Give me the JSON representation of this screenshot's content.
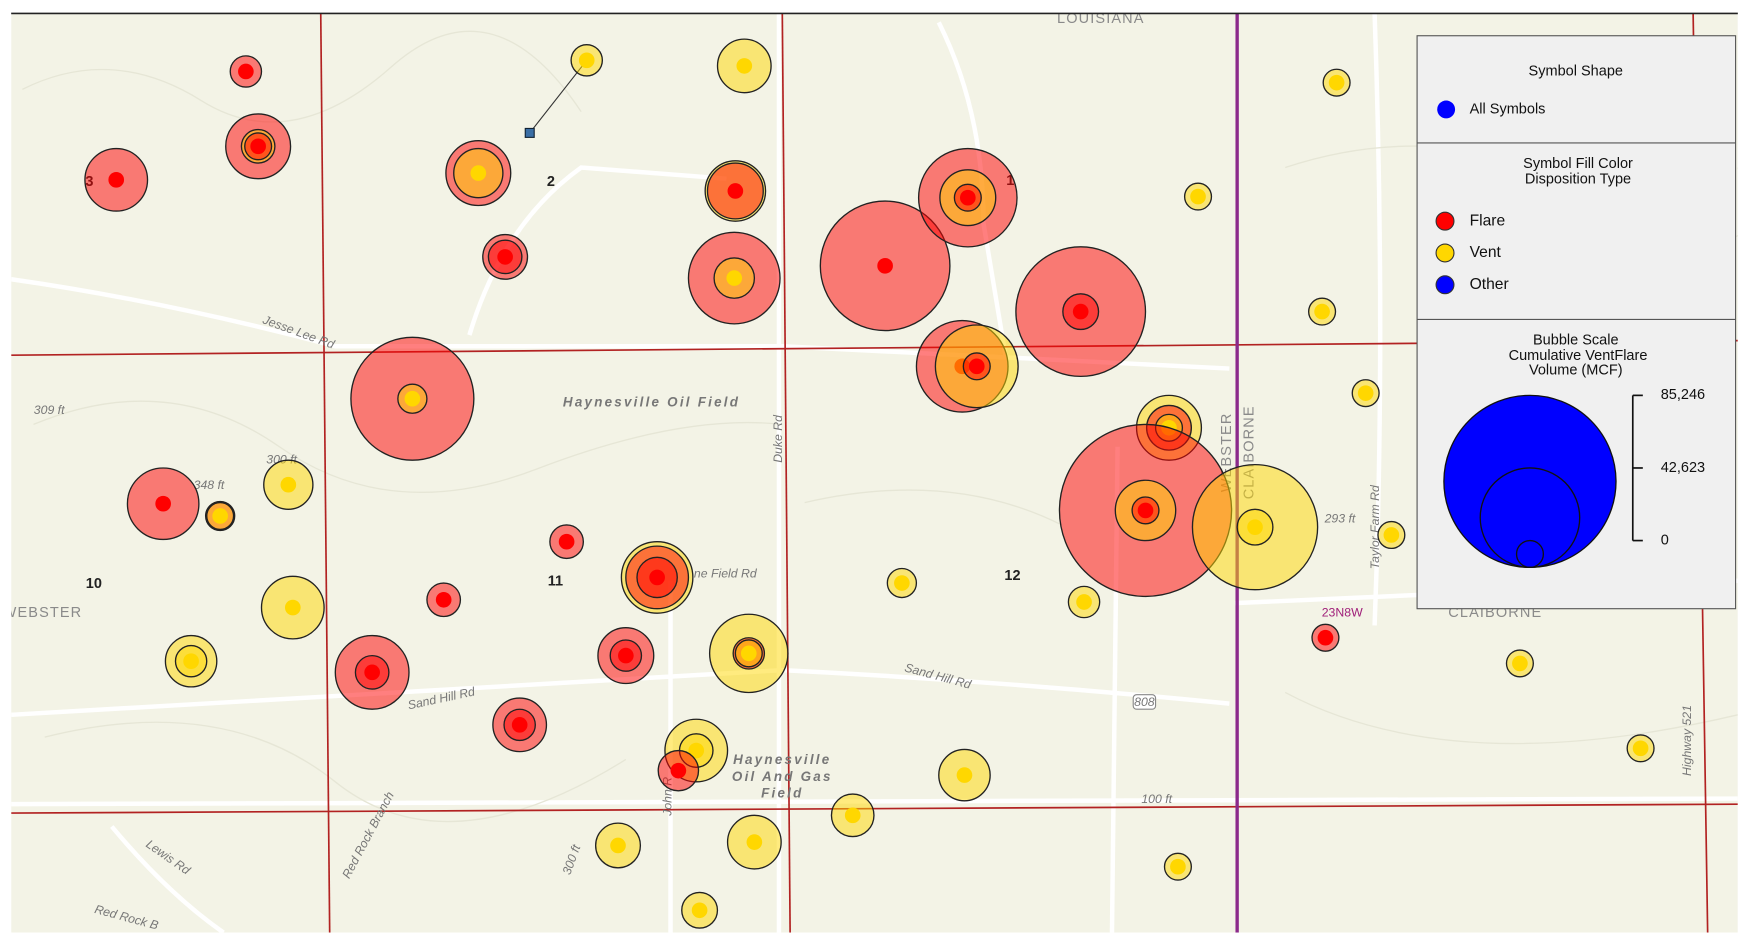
{
  "legend": {
    "shape_title": "Symbol Shape",
    "shape_item": {
      "label": "All Symbols",
      "color": "#0000ff"
    },
    "fill_title": "Symbol Fill Color",
    "fill_subtitle": "Disposition Type",
    "dispositions": [
      {
        "name": "Flare",
        "color": "#ff0000"
      },
      {
        "name": "Vent",
        "color": "#ffd700"
      },
      {
        "name": "Other",
        "color": "#0000ff"
      }
    ],
    "scale_title": "Bubble Scale",
    "scale_subtitle": [
      "Cumulative VentFlare",
      "Volume (MCF)"
    ],
    "scale_ticks": [
      {
        "value": 85246,
        "label": "85,246"
      },
      {
        "value": 42623,
        "label": "42,623"
      },
      0
    ],
    "scale_color": "#0000ff"
  },
  "map_labels": [
    "LOUISIANA",
    "2",
    "1",
    "3",
    "Jesse Lee Rd",
    "Haynesville Oil Field",
    "309 ft",
    "348 ft",
    "300 ft",
    "10",
    "11",
    "12",
    "WEBSTER",
    "Duke Rd",
    "ne Field Rd",
    "Sand Hill Rd",
    "Sand Hill Rd",
    "WEBSTER",
    "CLAIBORNE",
    "293 ft",
    "Taylor Farm Rd",
    "23N8W",
    "CLAIBORNE",
    "Highway 521",
    "808",
    "Haynesville",
    "Oil And Gas",
    "Field",
    "John R",
    "Red Rock Branch",
    "Lewis Rd",
    "Red Rock B",
    "300 ft",
    "100 ft"
  ],
  "wells": [
    {
      "bubbles": [
        {
          "disposition": "Flare",
          "volume": 2600
        }
      ]
    },
    {
      "bubbles": [
        {
          "disposition": "Flare",
          "volume": 22300
        },
        {
          "disposition": "Vent",
          "volume": 3900
        },
        {
          "disposition": "Flare",
          "volume": 0
        }
      ]
    },
    {
      "bubbles": [
        {
          "disposition": "Flare",
          "volume": 21000
        }
      ]
    },
    {
      "bubbles": [
        {
          "disposition": "Vent",
          "volume": 2600
        }
      ]
    },
    {
      "bubbles": [
        {
          "disposition": "Vent",
          "volume": 15700
        }
      ]
    },
    {
      "bubbles": [
        {
          "disposition": "Flare",
          "volume": 22300
        },
        {
          "disposition": "Vent",
          "volume": 13100
        }
      ]
    },
    {
      "bubbles": [
        {
          "disposition": "Vent",
          "volume": 19700
        },
        {
          "disposition": "Flare",
          "volume": 17000
        }
      ]
    },
    {
      "bubbles": [
        {
          "disposition": "Flare",
          "volume": 10500
        },
        {
          "disposition": "Flare",
          "volume": 3900
        }
      ]
    },
    {
      "bubbles": [
        {
          "disposition": "Flare",
          "volume": 38000
        },
        {
          "disposition": "Vent",
          "volume": 7900
        }
      ]
    },
    {
      "bubbles": [
        {
          "disposition": "Flare",
          "volume": 60300
        }
      ]
    },
    {
      "bubbles": [
        {
          "disposition": "Flare",
          "volume": 42000
        },
        {
          "disposition": "Vent",
          "volume": 17000
        },
        {
          "disposition": "Flare",
          "volume": 0
        }
      ]
    },
    {
      "bubbles": [
        {
          "disposition": "Flare",
          "volume": 60300
        },
        {
          "disposition": "Flare",
          "volume": 5200
        }
      ]
    },
    {
      "bubbles": [
        {
          "disposition": "Vent",
          "volume": 0
        }
      ]
    },
    {
      "bubbles": [
        {
          "disposition": "Vent",
          "volume": 0
        }
      ]
    },
    {
      "bubbles": [
        {
          "disposition": "Vent",
          "volume": 0
        }
      ]
    },
    {
      "bubbles": [
        {
          "disposition": "Vent",
          "volume": 0
        }
      ]
    },
    {
      "bubbles": [
        {
          "disposition": "Vent",
          "volume": 0
        }
      ]
    },
    {
      "bubbles": [
        {
          "disposition": "Vent",
          "volume": 0
        }
      ]
    },
    {
      "bubbles": [
        {
          "disposition": "Vent",
          "volume": 0
        }
      ]
    },
    {
      "bubbles": [
        {
          "disposition": "Flare",
          "volume": 0
        }
      ]
    },
    {
      "bubbles": [
        {
          "disposition": "Vent",
          "volume": 0
        }
      ]
    },
    {
      "bubbles": [
        {
          "disposition": "Flare",
          "volume": 56400
        },
        {
          "disposition": "Vent",
          "volume": 1300
        }
      ]
    },
    {
      "bubbles": [
        {
          "disposition": "Flare",
          "volume": 38000
        }
      ]
    },
    {
      "bubbles": [
        {
          "disposition": "Vent",
          "volume": 32800
        },
        {
          "disposition": "Flare",
          "volume": 0
        }
      ]
    },
    {
      "bubbles": [
        {
          "disposition": "Vent",
          "volume": 22300
        },
        {
          "disposition": "Flare",
          "volume": 10500
        },
        {
          "disposition": "Vent",
          "volume": 0
        }
      ]
    },
    {
      "bubbles": [
        {
          "disposition": "Flare",
          "volume": 85246
        },
        {
          "disposition": "Vent",
          "volume": 19700
        },
        {
          "disposition": "Flare",
          "volume": 0
        }
      ]
    },
    {
      "bubbles": [
        {
          "disposition": "Vent",
          "volume": 57700
        },
        {
          "disposition": "Vent",
          "volume": 5200
        }
      ]
    },
    {
      "bubbles": [
        {
          "disposition": "Flare",
          "volume": 26200
        }
      ]
    },
    {
      "bubbles": [
        {
          "disposition": "Flare",
          "volume": 1300
        },
        {
          "disposition": "Vent",
          "volume": 0
        }
      ]
    },
    {
      "bubbles": [
        {
          "disposition": "Vent",
          "volume": 13100
        }
      ]
    },
    {
      "bubbles": [
        {
          "disposition": "Flare",
          "volume": 3900
        }
      ]
    },
    {
      "bubbles": [
        {
          "disposition": "Flare",
          "volume": 3900
        }
      ]
    },
    {
      "bubbles": [
        {
          "disposition": "Vent",
          "volume": 26200
        },
        {
          "disposition": "Flare",
          "volume": 21000
        },
        {
          "disposition": "Flare",
          "volume": 7900
        }
      ]
    },
    {
      "bubbles": [
        {
          "disposition": "Vent",
          "volume": 1300
        }
      ]
    },
    {
      "bubbles": [
        {
          "disposition": "Vent",
          "volume": 2600
        }
      ]
    },
    {
      "bubbles": [
        {
          "disposition": "Vent",
          "volume": 21000
        }
      ]
    },
    {
      "bubbles": [
        {
          "disposition": "Vent",
          "volume": 14400
        },
        {
          "disposition": "Vent",
          "volume": 2600
        }
      ]
    },
    {
      "bubbles": [
        {
          "disposition": "Flare",
          "volume": 27500
        },
        {
          "disposition": "Flare",
          "volume": 3900
        }
      ]
    },
    {
      "bubbles": [
        {
          "disposition": "Flare",
          "volume": 17000
        },
        {
          "disposition": "Flare",
          "volume": 2600
        }
      ]
    },
    {
      "bubbles": [
        {
          "disposition": "Vent",
          "volume": 30200
        },
        {
          "disposition": "Flare",
          "volume": 2600
        },
        {
          "disposition": "Vent",
          "volume": 0
        }
      ]
    },
    {
      "bubbles": [
        {
          "disposition": "Flare",
          "volume": 15700
        },
        {
          "disposition": "Flare",
          "volume": 2600
        }
      ]
    },
    {
      "bubbles": [
        {
          "disposition": "Vent",
          "volume": 21000
        },
        {
          "disposition": "Vent",
          "volume": 3900
        }
      ]
    },
    {
      "bubbles": [
        {
          "disposition": "Flare",
          "volume": 7900
        }
      ]
    },
    {
      "bubbles": [
        {
          "disposition": "Vent",
          "volume": 14400
        }
      ]
    },
    {
      "bubbles": [
        {
          "disposition": "Vent",
          "volume": 9200
        }
      ]
    },
    {
      "bubbles": [
        {
          "disposition": "Vent",
          "volume": 10500
        }
      ]
    },
    {
      "bubbles": [
        {
          "disposition": "Vent",
          "volume": 15700
        }
      ]
    },
    {
      "bubbles": [
        {
          "disposition": "Vent",
          "volume": 5200
        }
      ]
    }
  ]
}
